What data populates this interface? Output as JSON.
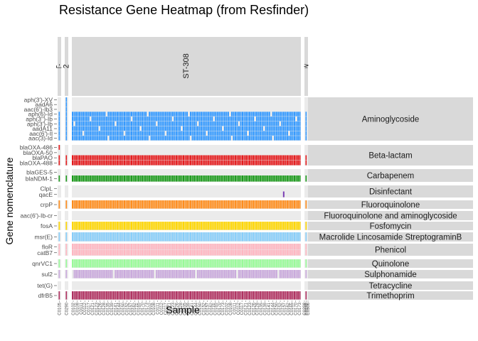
{
  "title": "Resistance Gene Heatmap (from Resfinder)",
  "xlabel": "Sample",
  "ylabel": "Gene nomenclature",
  "chart_data": {
    "type": "heatmap",
    "title": "Resistance Gene Heatmap (from Resfinder)",
    "xlabel": "Sample",
    "ylabel": "Gene nomenclature",
    "facet_columns": [
      {
        "label": "ST-...",
        "samples": [
          "C0105"
        ],
        "n_samples": 1
      },
      {
        "label": "ST-2614",
        "samples": [
          "C0290"
        ],
        "n_samples": 1
      },
      {
        "label": "ST-308",
        "samples": [
          "C0102",
          "C0108",
          "C0111",
          "C0112",
          "C0117",
          "C0121",
          "C0123",
          "C0126",
          "C0128",
          "C0135",
          "C0139",
          "C0141",
          "C0144",
          "C0150",
          "C0152",
          "C0157",
          "C0162",
          "C0165",
          "C0170",
          "C0173"
        ],
        "n_samples": 128
      },
      {
        "label": "Unknown_ST",
        "samples": [
          "C0298",
          "C0299",
          "C0306"
        ],
        "n_samples": 3
      }
    ],
    "facet_rows": [
      {
        "label": "Aminoglycoside",
        "color": "#3399ff",
        "genes": [
          "aph(3')-XV",
          "aadA6",
          "aac(6')-Ib3",
          "aph(6)-Id",
          "aph(3'')-Ib",
          "aph(3')-Ib",
          "aadA11",
          "aac(6')-Il",
          "aac(3)-Id"
        ]
      },
      {
        "label": "Beta-lactam",
        "color": "#e41a1c",
        "genes": [
          "blaOXA-486",
          "blaOXA-50",
          "blaPAO",
          "blaOXA-488"
        ]
      },
      {
        "label": "Carbapenem",
        "color": "#1a9a1a",
        "genes": [
          "blaGES-5",
          "blaNDM-1"
        ]
      },
      {
        "label": "Disinfectant",
        "color": "#7b3fb5",
        "genes": [
          "ClpL",
          "qacE"
        ]
      },
      {
        "label": "Fluoroquinolone",
        "color": "#ff8c1a",
        "genes": [
          "crpP"
        ]
      },
      {
        "label": "Fluoroquinolone_and_aminoglycoside",
        "color": "#111111",
        "genes": [
          "aac(6')-Ib-cr"
        ]
      },
      {
        "label": "Fosfomycin",
        "color": "#ffd700",
        "genes": [
          "fosA"
        ]
      },
      {
        "label": "Macrolide_Lincosamide_StreptograminB",
        "color": "#87cefa",
        "genes": [
          "msr(E)"
        ]
      },
      {
        "label": "Phenicol",
        "color": "#ffb6c1",
        "genes": [
          "floR",
          "catB7"
        ]
      },
      {
        "label": "Quinolone",
        "color": "#98fb98",
        "genes": [
          "qnrVC1"
        ]
      },
      {
        "label": "Sulphonamide",
        "color": "#c9a9dc",
        "genes": [
          "sul2"
        ]
      },
      {
        "label": "Tetracycline",
        "color": "#ffa54f",
        "genes": [
          "tet(G)"
        ]
      },
      {
        "label": "Trimethoprim",
        "color": "#b03060",
        "genes": [
          "dfrB5"
        ]
      }
    ],
    "presence": {
      "ST-308": {
        "aph(3')-XV": "absent",
        "aadA6": "absent",
        "aac(6')-Ib3": "absent",
        "aph(6)-Id": "present in most samples",
        "aph(3'')-Ib": "present in most samples",
        "aph(3')-Ib": "present in most samples",
        "aadA11": "present in most samples",
        "aac(6')-Il": "present in most samples",
        "aac(3)-Id": "present in most samples",
        "blaOXA-486": "absent",
        "blaOXA-50": "absent",
        "blaPAO": "present in all samples",
        "blaOXA-488": "present in all samples",
        "blaGES-5": "absent",
        "blaNDM-1": "present in all samples",
        "ClpL": "absent",
        "qacE": "present in one sample",
        "crpP": "present in all samples",
        "aac(6')-Ib-cr": "absent",
        "fosA": "present in all samples",
        "msr(E)": "present in all samples",
        "floR": "present in all samples",
        "catB7": "present in all samples",
        "qnrVC1": "present in all samples",
        "sul2": "present in most samples",
        "tet(G)": "absent",
        "dfrB5": "present in all samples"
      }
    },
    "legend": "none",
    "grid": false
  }
}
